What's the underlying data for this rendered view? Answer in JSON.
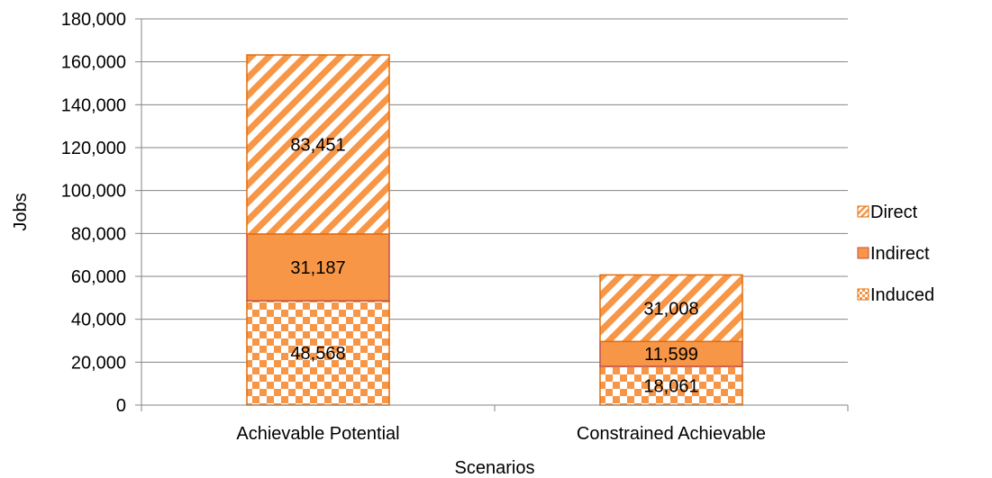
{
  "chart_data": {
    "type": "bar",
    "stacked": true,
    "categories": [
      "Achievable Potential",
      "Constrained Achievable"
    ],
    "series": [
      {
        "name": "Induced",
        "values": [
          48568,
          18061
        ],
        "value_labels": [
          "48,568",
          "18,061"
        ],
        "pattern": "checker"
      },
      {
        "name": "Indirect",
        "values": [
          31187,
          11599
        ],
        "value_labels": [
          "31,187",
          "11,599"
        ],
        "pattern": "solid"
      },
      {
        "name": "Direct",
        "values": [
          83451,
          31008
        ],
        "value_labels": [
          "83,451",
          "31,008"
        ],
        "pattern": "diagonal"
      }
    ],
    "legend_order": [
      "Direct",
      "Indirect",
      "Induced"
    ],
    "legend_position": "right",
    "xlabel": "Scenarios",
    "ylabel": "Jobs",
    "ylim": [
      0,
      180000
    ],
    "yticks": [
      0,
      20000,
      40000,
      60000,
      80000,
      100000,
      120000,
      140000,
      160000,
      180000
    ],
    "ytick_labels": [
      "0",
      "20,000",
      "40,000",
      "60,000",
      "80,000",
      "100,000",
      "120,000",
      "140,000",
      "160,000",
      "180,000"
    ],
    "grid": "horizontal",
    "colors": {
      "fill": "#F79646",
      "border": "#E36C09",
      "grid": "#868686",
      "indirect_border": "#C0504D"
    }
  }
}
